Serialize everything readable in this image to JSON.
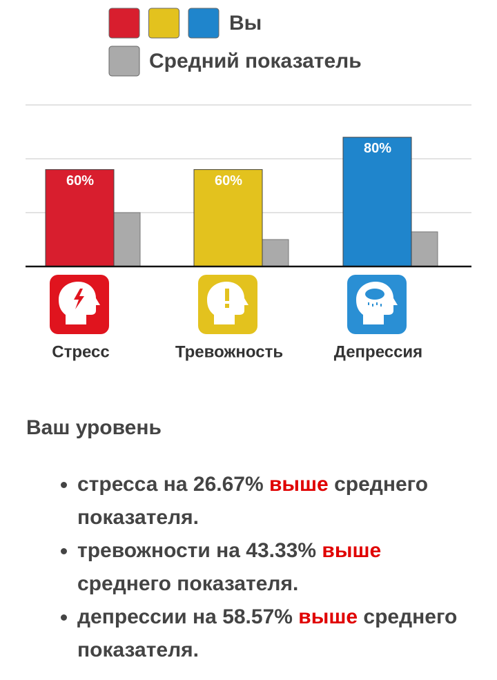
{
  "chart_data": {
    "type": "bar",
    "categories": [
      "Стресс",
      "Тревожность",
      "Депрессия"
    ],
    "series": [
      {
        "name": "Вы",
        "colors": [
          "#d81e2e",
          "#e3c21e",
          "#1f85cc"
        ],
        "values": [
          60,
          60,
          80
        ],
        "value_labels": [
          "60%",
          "60%",
          "80%"
        ]
      },
      {
        "name": "Средний показатель",
        "color": "#aaaaaa",
        "values": [
          33.33,
          16.67,
          21.43
        ]
      }
    ],
    "ylim": [
      0,
      100
    ],
    "yticks": [
      0,
      33.33,
      66.67,
      100
    ],
    "grid": true
  },
  "summary": {
    "heading": "Ваш уровень",
    "items": [
      {
        "text": "стресса на 26.67%",
        "highlight": "выше",
        "rest": "среднего показателя."
      },
      {
        "text": "тревожности на 43.33%",
        "highlight": "выше",
        "rest": "среднего показателя."
      },
      {
        "text": "депрессии на 58.57%",
        "highlight": "выше",
        "rest": "среднего показателя."
      }
    ]
  }
}
